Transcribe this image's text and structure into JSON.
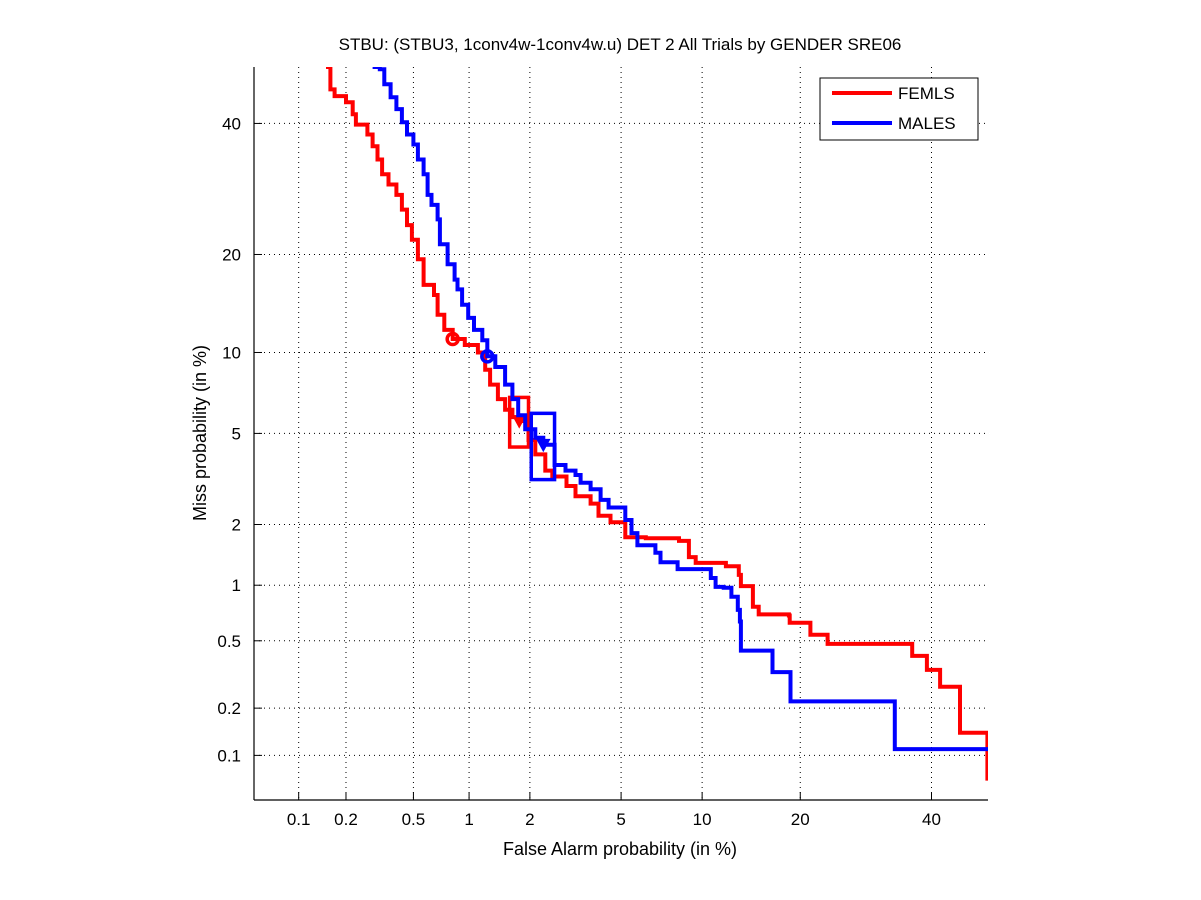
{
  "chart_data": {
    "type": "line",
    "scale": "normal-deviate (probit)",
    "title": "STBU: (STBU3, 1conv4w-1conv4w.u) DET 2 All Trials by GENDER SRE06",
    "xlabel": "False Alarm probability (in %)",
    "ylabel": "Miss probability (in %)",
    "xlim": [
      0.05,
      50
    ],
    "ylim": [
      0.05,
      50
    ],
    "xticks": [
      0.1,
      0.2,
      0.5,
      1,
      2,
      5,
      10,
      20,
      40
    ],
    "xtick_labels": [
      "0.1",
      "0.2",
      "0.5",
      "1",
      "2",
      "5",
      "10",
      "20",
      "40"
    ],
    "yticks": [
      0.1,
      0.2,
      0.5,
      1,
      2,
      5,
      10,
      20,
      40
    ],
    "ytick_labels": [
      "0.1",
      "0.2",
      "0.5",
      "1",
      "2",
      "5",
      "10",
      "20",
      "40"
    ],
    "grid": true,
    "legend_position": "top-right",
    "series": [
      {
        "name": "FEMLS",
        "color": "#ff0000",
        "points": [
          [
            0.15,
            50
          ],
          [
            0.16,
            46
          ],
          [
            0.17,
            44.8
          ],
          [
            0.2,
            43.7
          ],
          [
            0.22,
            41.6
          ],
          [
            0.23,
            39.8
          ],
          [
            0.27,
            38.1
          ],
          [
            0.29,
            36.1
          ],
          [
            0.31,
            33.9
          ],
          [
            0.33,
            31.5
          ],
          [
            0.36,
            29.9
          ],
          [
            0.4,
            28.3
          ],
          [
            0.43,
            26.1
          ],
          [
            0.46,
            23.9
          ],
          [
            0.49,
            21.9
          ],
          [
            0.53,
            19.4
          ],
          [
            0.57,
            16.4
          ],
          [
            0.65,
            15.3
          ],
          [
            0.68,
            13.3
          ],
          [
            0.74,
            11.9
          ],
          [
            0.82,
            11.1
          ],
          [
            0.95,
            10.6
          ],
          [
            1.11,
            10.0
          ],
          [
            1.21,
            8.7
          ],
          [
            1.28,
            7.7
          ],
          [
            1.4,
            6.8
          ],
          [
            1.52,
            6.2
          ],
          [
            1.65,
            5.8
          ],
          [
            1.78,
            5.6
          ],
          [
            1.97,
            4.7
          ],
          [
            2.12,
            4.1
          ],
          [
            2.36,
            3.5
          ],
          [
            2.54,
            3.3
          ],
          [
            2.94,
            3.0
          ],
          [
            3.22,
            2.7
          ],
          [
            3.74,
            2.5
          ],
          [
            4.04,
            2.2
          ],
          [
            4.53,
            2.05
          ],
          [
            5.2,
            1.74
          ],
          [
            6.25,
            1.72
          ],
          [
            8.3,
            1.67
          ],
          [
            9.0,
            1.39
          ],
          [
            9.5,
            1.3
          ],
          [
            12.0,
            1.25
          ],
          [
            13.2,
            1.13
          ],
          [
            13.4,
            0.99
          ],
          [
            14.6,
            0.77
          ],
          [
            15.2,
            0.7
          ],
          [
            18.6,
            0.69
          ],
          [
            18.7,
            0.63
          ],
          [
            21.2,
            0.63
          ],
          [
            21.3,
            0.54
          ],
          [
            23.5,
            0.54
          ],
          [
            23.6,
            0.48
          ],
          [
            36.3,
            0.48
          ],
          [
            36.7,
            0.41
          ],
          [
            39.0,
            0.41
          ],
          [
            39.2,
            0.34
          ],
          [
            41.3,
            0.34
          ],
          [
            41.5,
            0.27
          ],
          [
            44.7,
            0.27
          ],
          [
            45.0,
            0.14
          ],
          [
            49.9,
            0.14
          ],
          [
            49.9,
            0.07
          ],
          [
            50,
            0.07
          ]
        ],
        "min_dcf_point": [
          0.82,
          11.1
        ],
        "act_dcf_point": [
          1.78,
          5.6
        ],
        "confidence_box": {
          "x": [
            1.6,
            1.97
          ],
          "y": [
            4.4,
            6.9
          ]
        }
      },
      {
        "name": "MALES",
        "color": "#0000ff",
        "points": [
          [
            0.29,
            50
          ],
          [
            0.32,
            49.6
          ],
          [
            0.34,
            46.9
          ],
          [
            0.37,
            44.6
          ],
          [
            0.4,
            42.5
          ],
          [
            0.43,
            40.2
          ],
          [
            0.46,
            38.1
          ],
          [
            0.5,
            36.4
          ],
          [
            0.53,
            33.9
          ],
          [
            0.57,
            31.5
          ],
          [
            0.6,
            28.3
          ],
          [
            0.63,
            26.8
          ],
          [
            0.68,
            24.7
          ],
          [
            0.7,
            21.3
          ],
          [
            0.77,
            18.8
          ],
          [
            0.84,
            17.0
          ],
          [
            0.87,
            15.9
          ],
          [
            0.92,
            14.3
          ],
          [
            0.99,
            13.0
          ],
          [
            1.06,
            11.9
          ],
          [
            1.17,
            11.0
          ],
          [
            1.24,
            9.7
          ],
          [
            1.36,
            8.9
          ],
          [
            1.52,
            7.7
          ],
          [
            1.65,
            6.8
          ],
          [
            1.76,
            5.9
          ],
          [
            1.9,
            5.2
          ],
          [
            2.12,
            4.8
          ],
          [
            2.31,
            4.5
          ],
          [
            2.6,
            3.7
          ],
          [
            2.91,
            3.5
          ],
          [
            3.22,
            3.35
          ],
          [
            3.39,
            3.1
          ],
          [
            3.74,
            2.9
          ],
          [
            4.12,
            2.6
          ],
          [
            4.45,
            2.4
          ],
          [
            4.98,
            2.4
          ],
          [
            5.2,
            2.1
          ],
          [
            5.5,
            1.82
          ],
          [
            5.8,
            1.59
          ],
          [
            6.8,
            1.46
          ],
          [
            7.1,
            1.31
          ],
          [
            8.1,
            1.31
          ],
          [
            8.2,
            1.21
          ],
          [
            10.6,
            1.21
          ],
          [
            10.7,
            1.09
          ],
          [
            11.1,
            0.98
          ],
          [
            11.8,
            0.97
          ],
          [
            12.5,
            0.87
          ],
          [
            13.1,
            0.74
          ],
          [
            13.3,
            0.64
          ],
          [
            13.4,
            0.44
          ],
          [
            16.6,
            0.44
          ],
          [
            16.7,
            0.33
          ],
          [
            18.6,
            0.33
          ],
          [
            18.8,
            0.22
          ],
          [
            33.8,
            0.22
          ],
          [
            33.8,
            0.11
          ],
          [
            50,
            0.11
          ]
        ],
        "min_dcf_point": [
          1.24,
          9.7
        ],
        "act_dcf_point": [
          2.31,
          4.5
        ],
        "confidence_box": {
          "x": [
            2.03,
            2.6
          ],
          "y": [
            3.2,
            6.0
          ]
        }
      }
    ]
  }
}
